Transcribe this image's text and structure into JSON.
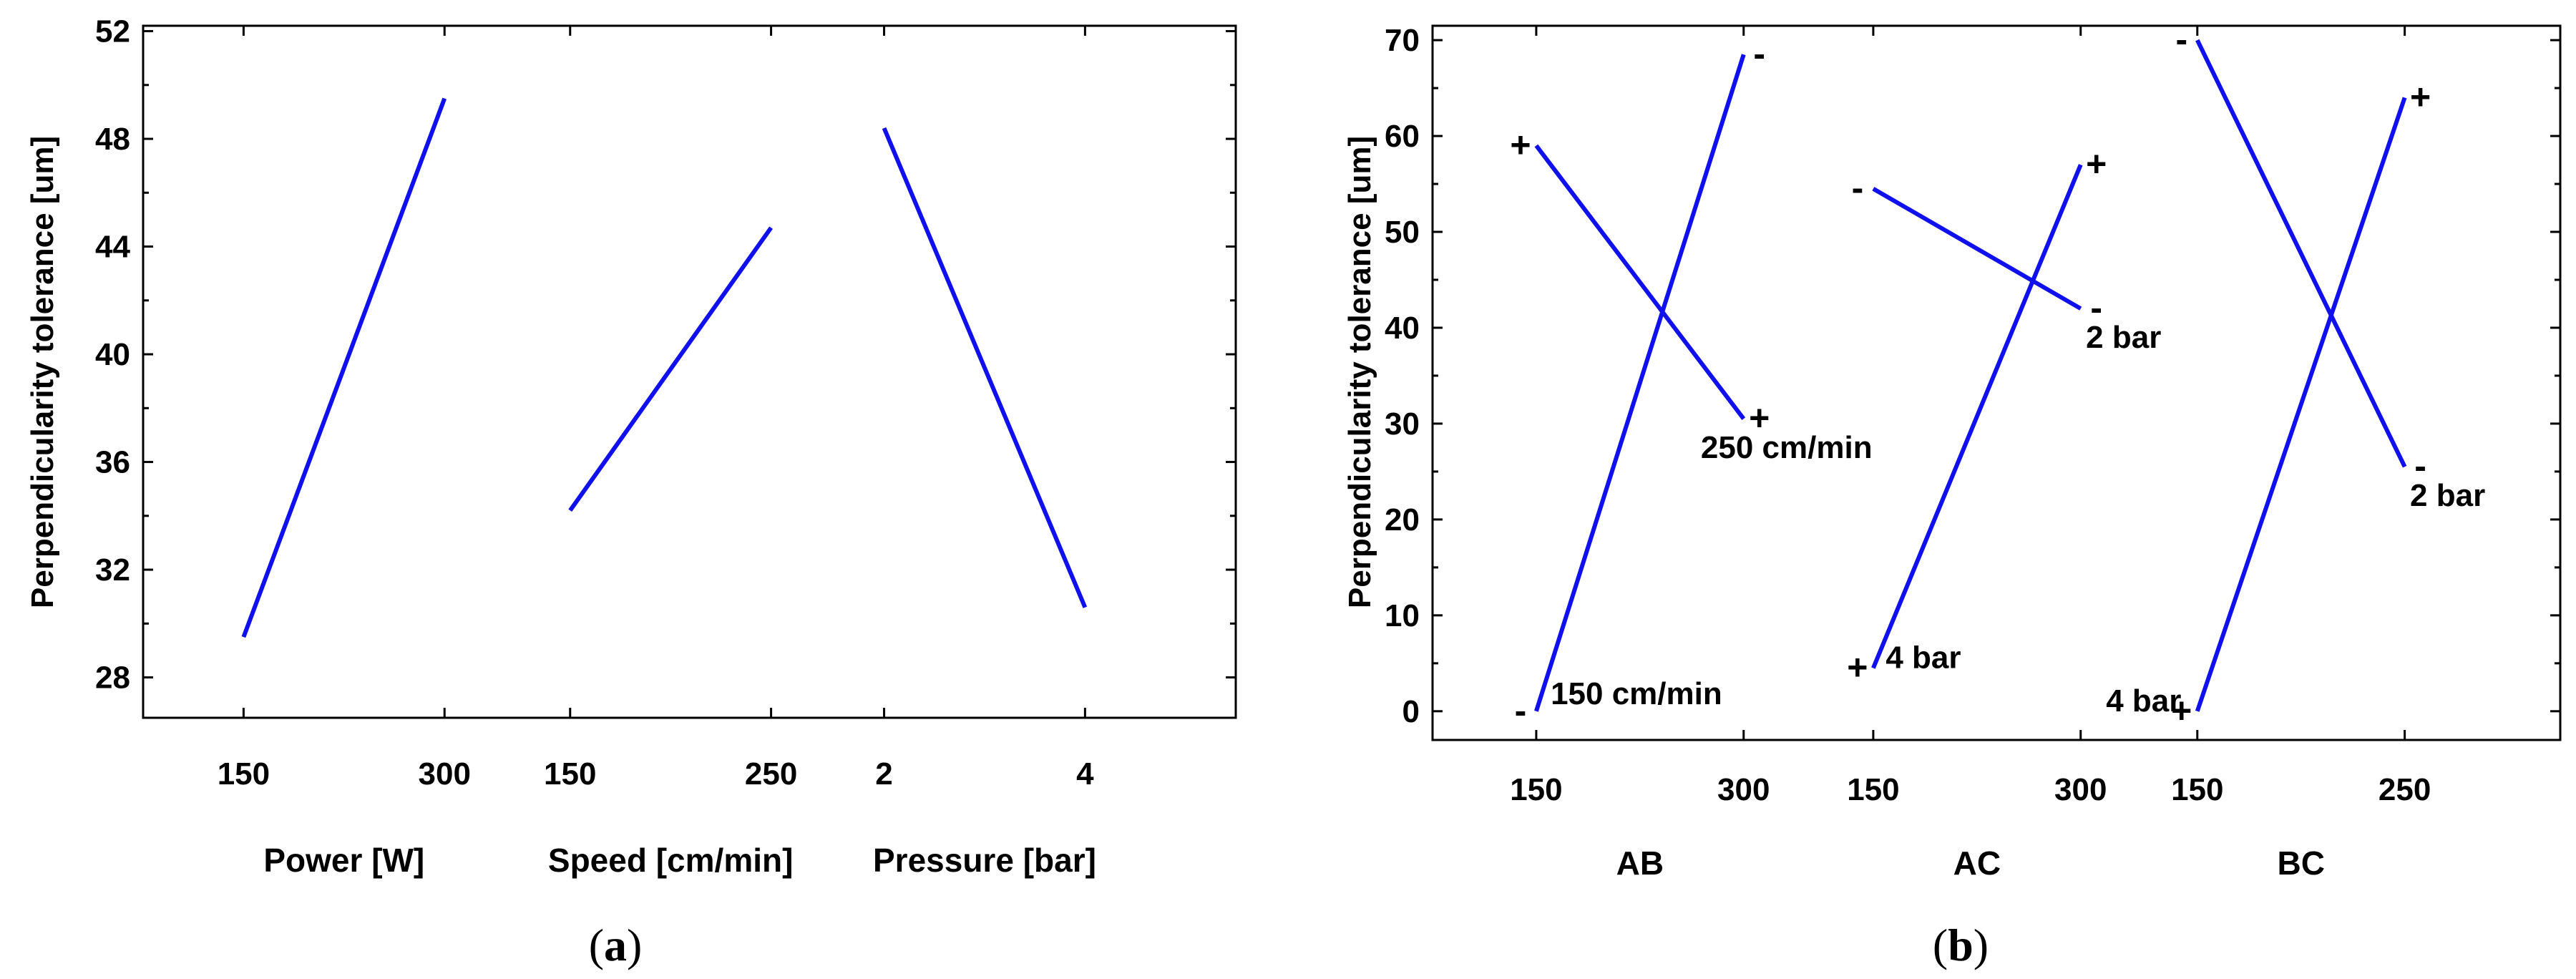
{
  "chart_data": [
    {
      "type": "line",
      "panel_label": {
        "open": "(",
        "letter": "a",
        "close": ")"
      },
      "ylabel": "Perpendicularity tolerance [um]",
      "ylim": [
        26.5,
        52.2
      ],
      "y_ticks": [
        28,
        32,
        36,
        40,
        44,
        48,
        52
      ],
      "x_index_range": [
        0.0,
        8.7
      ],
      "factors": [
        {
          "name": "Power [W]",
          "low_label": "150",
          "high_label": "300",
          "low_x": 0.8,
          "high_x": 2.4,
          "values": [
            29.5,
            49.5
          ]
        },
        {
          "name": "Speed [cm/min]",
          "low_label": "150",
          "high_label": "250",
          "low_x": 3.4,
          "high_x": 5.0,
          "values": [
            34.2,
            44.7
          ]
        },
        {
          "name": "Pressure [bar]",
          "low_label": "2",
          "high_label": "4",
          "low_x": 5.9,
          "high_x": 7.5,
          "values": [
            48.4,
            30.6
          ]
        }
      ]
    },
    {
      "type": "line",
      "panel_label": {
        "open": "(",
        "letter": "b",
        "close": ")"
      },
      "ylabel": "Perpendicularity tolerance [um]",
      "ylim": [
        -3,
        71.5
      ],
      "y_ticks": [
        0,
        10,
        20,
        30,
        40,
        50,
        60,
        70
      ],
      "x_index_range": [
        0.0,
        8.7
      ],
      "interactions": [
        {
          "name": "AB",
          "low_label": "150",
          "high_label": "300",
          "low_x": 0.8,
          "high_x": 2.4,
          "series": [
            {
              "level": "+",
              "values": [
                59,
                30.5
              ],
              "start_sign": "+",
              "end_sign": "+",
              "end_note": "250 cm/min"
            },
            {
              "level": "-",
              "values": [
                0,
                68.5
              ],
              "start_sign": "-",
              "end_sign": "-",
              "start_note": "150 cm/min"
            }
          ]
        },
        {
          "name": "AC",
          "low_label": "150",
          "high_label": "300",
          "low_x": 3.4,
          "high_x": 5.0,
          "series": [
            {
              "level": "-",
              "values": [
                54.5,
                42
              ],
              "start_sign": "-",
              "end_sign": "-",
              "end_note": "2 bar"
            },
            {
              "level": "+",
              "values": [
                4.5,
                57
              ],
              "start_sign": "+",
              "end_sign": "+",
              "start_note": "4 bar"
            }
          ]
        },
        {
          "name": "BC",
          "low_label": "150",
          "high_label": "250",
          "low_x": 5.9,
          "high_x": 7.5,
          "series": [
            {
              "level": "-",
              "values": [
                70,
                25.5
              ],
              "start_sign": "-",
              "end_sign": "-",
              "end_note": "2 bar"
            },
            {
              "level": "+",
              "values": [
                0,
                64
              ],
              "start_sign": "+",
              "end_sign": "+",
              "start_note": "4 bar"
            }
          ]
        }
      ]
    }
  ]
}
